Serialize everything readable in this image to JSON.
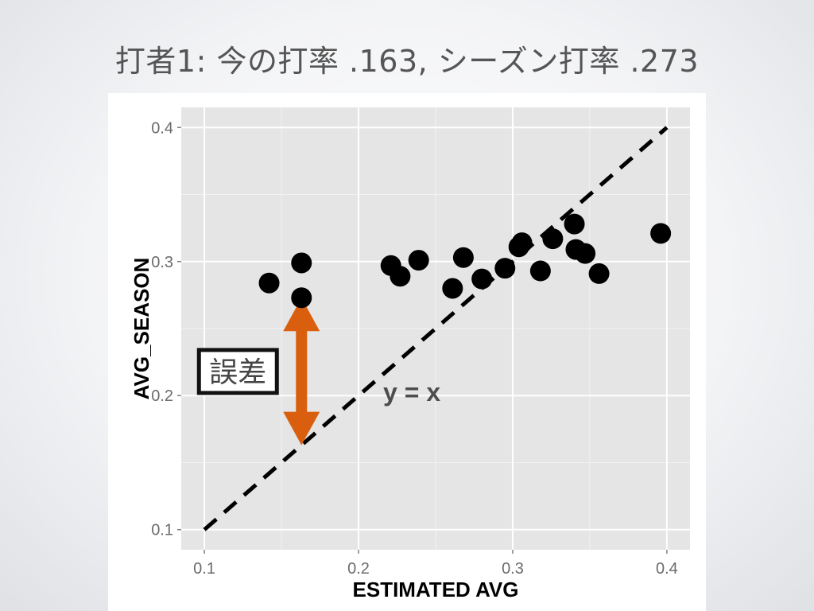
{
  "slide": {
    "title": "打者1: 今の打率 .163, シーズン打率 .273"
  },
  "chart_data": {
    "type": "scatter",
    "title": "",
    "xlabel": "ESTIMATED AVG",
    "ylabel": "AVG_SEASON",
    "xlim": [
      0.085,
      0.415
    ],
    "ylim": [
      0.085,
      0.415
    ],
    "xticks": [
      {
        "value": 0.1,
        "label": "0.1"
      },
      {
        "value": 0.2,
        "label": "0.2"
      },
      {
        "value": 0.3,
        "label": "0.3"
      },
      {
        "value": 0.4,
        "label": "0.4"
      }
    ],
    "yticks": [
      {
        "value": 0.1,
        "label": "0.1"
      },
      {
        "value": 0.2,
        "label": "0.2"
      },
      {
        "value": 0.3,
        "label": "0.3"
      },
      {
        "value": 0.4,
        "label": "0.4"
      }
    ],
    "grid": true,
    "points": [
      {
        "x": 0.142,
        "y": 0.284
      },
      {
        "x": 0.163,
        "y": 0.299
      },
      {
        "x": 0.163,
        "y": 0.273
      },
      {
        "x": 0.221,
        "y": 0.297
      },
      {
        "x": 0.227,
        "y": 0.289
      },
      {
        "x": 0.239,
        "y": 0.301
      },
      {
        "x": 0.261,
        "y": 0.28
      },
      {
        "x": 0.268,
        "y": 0.303
      },
      {
        "x": 0.28,
        "y": 0.287
      },
      {
        "x": 0.295,
        "y": 0.295
      },
      {
        "x": 0.304,
        "y": 0.311
      },
      {
        "x": 0.306,
        "y": 0.314
      },
      {
        "x": 0.318,
        "y": 0.293
      },
      {
        "x": 0.326,
        "y": 0.317
      },
      {
        "x": 0.34,
        "y": 0.328
      },
      {
        "x": 0.341,
        "y": 0.309
      },
      {
        "x": 0.347,
        "y": 0.306
      },
      {
        "x": 0.356,
        "y": 0.291
      },
      {
        "x": 0.396,
        "y": 0.321
      }
    ],
    "reference_line": {
      "label": "y = x",
      "label_at": {
        "x": 0.216,
        "y": 0.196
      },
      "from": [
        0.1,
        0.1
      ],
      "to": [
        0.4,
        0.4
      ],
      "style": "dashed",
      "color": "#000000"
    },
    "annotation": {
      "label": "誤差",
      "arrow_x": 0.163,
      "arrow_from_y": 0.163,
      "arrow_to_y": 0.273,
      "arrow_color": "#d95f0e"
    },
    "colors": {
      "panel": "#e5e5e5",
      "grid_major": "#ffffff",
      "grid_minor": "#f2f2f2",
      "points": "#000000"
    }
  }
}
